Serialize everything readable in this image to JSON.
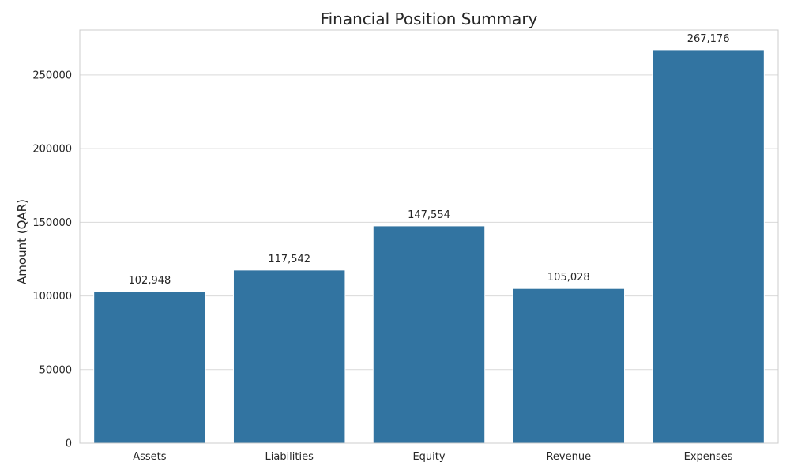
{
  "chart_data": {
    "type": "bar",
    "title": "Financial Position Summary",
    "xlabel": "",
    "ylabel": "Amount (QAR)",
    "categories": [
      "Assets",
      "Liabilities",
      "Equity",
      "Revenue",
      "Expenses"
    ],
    "values": [
      102948,
      117542,
      147554,
      105028,
      267176
    ],
    "value_labels": [
      "102,948",
      "117,542",
      "147,554",
      "105,028",
      "267,176"
    ],
    "yticks": [
      0,
      50000,
      100000,
      150000,
      200000,
      250000
    ],
    "ytick_labels": [
      "0",
      "50000",
      "100000",
      "150000",
      "200000",
      "250000"
    ],
    "ylim": [
      0,
      280537
    ],
    "grid": true,
    "bar_color": "#3274a1",
    "legend": "none"
  }
}
